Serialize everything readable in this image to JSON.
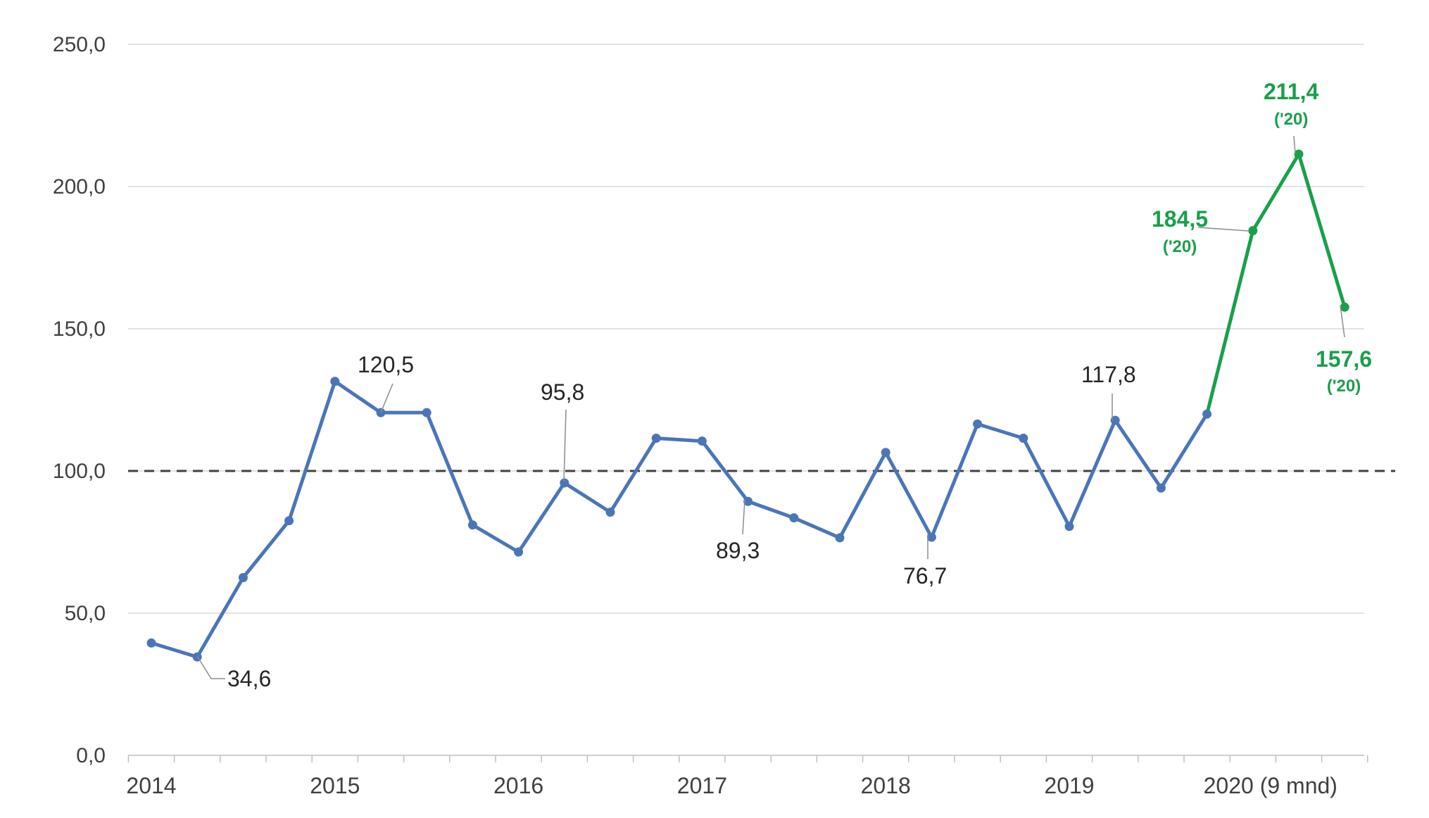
{
  "chart_data": {
    "type": "line",
    "title": "",
    "xlabel": "",
    "ylabel": "",
    "ylim": [
      0,
      250
    ],
    "y_ticks": [
      "0,0",
      "50,0",
      "100,0",
      "150,0",
      "200,0",
      "250,0"
    ],
    "x_tick_labels": [
      "2014",
      "2015",
      "2016",
      "2017",
      "2018",
      "2019",
      "2020 (9 mnd)"
    ],
    "grid": true,
    "reference_line": {
      "value": 100,
      "style": "dashed",
      "color": "#404040"
    },
    "series": [
      {
        "color": "#4a76b8",
        "values": [
          39.5,
          34.6,
          62.5,
          82.5,
          131.5,
          120.5,
          120.5,
          81.0,
          71.5,
          95.8,
          85.5,
          111.5,
          110.5,
          89.3,
          83.5,
          76.5,
          106.5,
          76.7,
          116.5,
          111.5,
          80.5,
          117.8,
          94.0,
          120.0
        ]
      },
      {
        "color": "#19a04b",
        "start_index": 23,
        "values": [
          120.0,
          184.5,
          211.4,
          157.6
        ]
      }
    ],
    "annotations": [
      {
        "index": 1,
        "text": "34,6"
      },
      {
        "index": 5,
        "text": "120,5"
      },
      {
        "index": 9,
        "text": "95,8"
      },
      {
        "index": 13,
        "text": "89,3"
      },
      {
        "index": 17,
        "text": "76,7"
      },
      {
        "index": 21,
        "text": "117,8"
      },
      {
        "index": 24,
        "text": "184,5",
        "subtext": "('20)"
      },
      {
        "index": 25,
        "text": "211,4",
        "subtext": "('20)"
      },
      {
        "index": 26,
        "text": "157,6",
        "subtext": "('20)"
      }
    ]
  }
}
